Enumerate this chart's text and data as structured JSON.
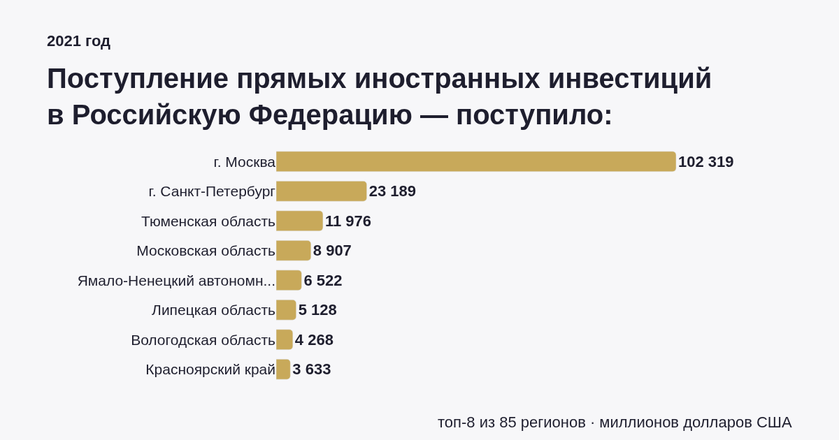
{
  "chart_data": {
    "type": "bar",
    "orientation": "horizontal",
    "subtitle": "2021 год",
    "title": "Поступление прямых иностранных инвестиций\nв Российскую Федерацию — поступило:",
    "categories": [
      "г. Москва",
      "г. Санкт-Петербург",
      "Тюменская область",
      "Московская область",
      "Ямало-Ненецкий автономн...",
      "Липецкая область",
      "Вологодская область",
      "Красноярский край"
    ],
    "values": [
      102319,
      23189,
      11976,
      8907,
      6522,
      5128,
      4268,
      3633
    ],
    "value_labels": [
      "102 319",
      "23 189",
      "11 976",
      "8 907",
      "6 522",
      "5 128",
      "4 268",
      "3 633"
    ],
    "color": "#c8a95a",
    "annotations": [
      "топ-8 из 85 регионов · миллионов долларов США"
    ],
    "grid": false,
    "legend": false
  }
}
